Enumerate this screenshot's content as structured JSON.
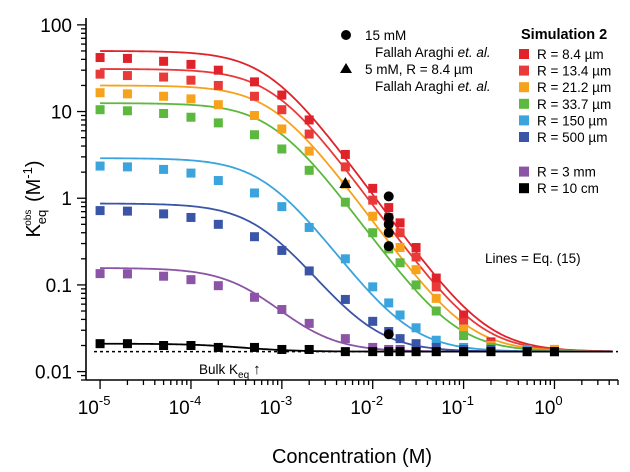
{
  "chart_data": {
    "type": "scatter",
    "xscale": "log",
    "yscale": "log",
    "xlim": [
      7e-06,
      5
    ],
    "ylim": [
      0.008,
      120
    ],
    "xlabel": "Concentration (M)",
    "ylabel": {
      "main": "K",
      "sub": "eq",
      "sup": "obs",
      "unit": " (M",
      "unit_sup": "-1",
      "unit_close": ")"
    },
    "x_ticks": [
      {
        "value": 1e-05,
        "base": "10",
        "exp": "-5"
      },
      {
        "value": 0.0001,
        "base": "10",
        "exp": "-4"
      },
      {
        "value": 0.001,
        "base": "10",
        "exp": "-3"
      },
      {
        "value": 0.01,
        "base": "10",
        "exp": "-2"
      },
      {
        "value": 0.1,
        "base": "10",
        "exp": "-1"
      },
      {
        "value": 1,
        "base": "10",
        "exp": "0"
      }
    ],
    "y_ticks": [
      {
        "value": 100,
        "label": "100"
      },
      {
        "value": 10,
        "label": "10"
      },
      {
        "value": 1,
        "label": "1"
      },
      {
        "value": 0.1,
        "label": "0.1"
      },
      {
        "value": 0.01,
        "label": "0.01"
      }
    ],
    "legend_title": "Simulation 2",
    "legend_position": "top-right",
    "bulk_keq": 0.017,
    "series": [
      {
        "name": "R = 8.4 µm",
        "color": "#e0232a",
        "plateau": 50,
        "x": [
          1e-05,
          2e-05,
          5e-05,
          0.0001,
          0.0002,
          0.0005,
          0.001,
          0.002,
          0.005,
          0.01,
          0.015,
          0.02,
          0.03,
          0.05,
          0.1,
          0.2,
          0.5,
          1
        ],
        "y": [
          42,
          41,
          38,
          35,
          30,
          22,
          15.5,
          8,
          3.2,
          1.3,
          0.78,
          0.52,
          0.27,
          0.12,
          0.045,
          0.022,
          0.018,
          0.018
        ]
      },
      {
        "name": "R = 13.4 µm",
        "color": "#e93a3a",
        "plateau": 31,
        "x": [
          1e-05,
          2e-05,
          5e-05,
          0.0001,
          0.0002,
          0.0005,
          0.001,
          0.002,
          0.005,
          0.01,
          0.015,
          0.02,
          0.03,
          0.05,
          0.1,
          0.2,
          0.5,
          1
        ],
        "y": [
          27,
          26,
          25,
          23,
          20,
          15,
          10.5,
          5.5,
          2.3,
          0.95,
          0.6,
          0.4,
          0.21,
          0.095,
          0.037,
          0.021,
          0.018,
          0.018
        ]
      },
      {
        "name": "R = 21.2 µm",
        "color": "#f7a21d",
        "plateau": 20,
        "x": [
          1e-05,
          2e-05,
          5e-05,
          0.0001,
          0.0002,
          0.0005,
          0.001,
          0.002,
          0.005,
          0.01,
          0.015,
          0.02,
          0.03,
          0.05,
          0.1,
          0.2,
          0.5,
          1
        ],
        "y": [
          16.5,
          16,
          15,
          14,
          12,
          9,
          6.3,
          3.5,
          1.45,
          0.62,
          0.4,
          0.27,
          0.15,
          0.07,
          0.031,
          0.02,
          0.018,
          0.018
        ]
      },
      {
        "name": "R = 33.7 µm",
        "color": "#5cb83e",
        "plateau": 12.5,
        "x": [
          1e-05,
          2e-05,
          5e-05,
          0.0001,
          0.0002,
          0.0005,
          0.001,
          0.002,
          0.005,
          0.01,
          0.015,
          0.02,
          0.03,
          0.05,
          0.1,
          0.2,
          0.5,
          1
        ],
        "y": [
          10.5,
          10.2,
          9.5,
          8.6,
          7.4,
          5.4,
          3.7,
          2.1,
          0.9,
          0.4,
          0.26,
          0.18,
          0.1,
          0.05,
          0.026,
          0.019,
          0.018,
          0.017
        ]
      },
      {
        "name": "R = 150 µm",
        "color": "#3ba4dc",
        "plateau": 2.9,
        "x": [
          1e-05,
          2e-05,
          5e-05,
          0.0001,
          0.0002,
          0.0005,
          0.001,
          0.002,
          0.005,
          0.01,
          0.015,
          0.02,
          0.03,
          0.05,
          0.1,
          0.2,
          0.5,
          1
        ],
        "y": [
          2.35,
          2.3,
          2.15,
          1.95,
          1.6,
          1.15,
          0.8,
          0.46,
          0.2,
          0.095,
          0.062,
          0.045,
          0.032,
          0.023,
          0.019,
          0.018,
          0.018,
          0.017
        ]
      },
      {
        "name": "R = 500 µm",
        "color": "#3a55a7",
        "plateau": 0.87,
        "x": [
          1e-05,
          2e-05,
          5e-05,
          0.0001,
          0.0002,
          0.0005,
          0.001,
          0.002,
          0.005,
          0.01,
          0.015,
          0.02,
          0.03,
          0.05,
          0.1,
          0.2,
          0.5,
          1
        ],
        "y": [
          0.72,
          0.71,
          0.66,
          0.6,
          0.5,
          0.36,
          0.25,
          0.145,
          0.068,
          0.038,
          0.029,
          0.024,
          0.021,
          0.019,
          0.018,
          0.018,
          0.017,
          0.017
        ]
      },
      {
        "name": "R = 3 mm",
        "color": "#8b54a6",
        "plateau": 0.157,
        "x": [
          1e-05,
          2e-05,
          5e-05,
          0.0001,
          0.0002,
          0.0005,
          0.001,
          0.002,
          0.005,
          0.01,
          0.015,
          0.02,
          0.03,
          0.05,
          0.1,
          0.2,
          0.5,
          1
        ],
        "y": [
          0.135,
          0.134,
          0.126,
          0.115,
          0.098,
          0.072,
          0.052,
          0.036,
          0.024,
          0.019,
          0.018,
          0.018,
          0.017,
          0.017,
          0.017,
          0.017,
          0.017,
          0.017
        ]
      },
      {
        "name": "R = 10 cm",
        "color": "#000000",
        "plateau": 0.021,
        "x": [
          1e-05,
          2e-05,
          5e-05,
          0.0001,
          0.0002,
          0.0005,
          0.001,
          0.002,
          0.005,
          0.01,
          0.015,
          0.02,
          0.03,
          0.05,
          0.1,
          0.2,
          0.5,
          1
        ],
        "y": [
          0.021,
          0.021,
          0.02,
          0.02,
          0.019,
          0.019,
          0.018,
          0.018,
          0.017,
          0.017,
          0.017,
          0.017,
          0.017,
          0.017,
          0.017,
          0.017,
          0.017,
          0.017
        ]
      }
    ],
    "experimental": [
      {
        "name": "15 mM",
        "source": "Fallah Araghi",
        "suffix": " et. al.",
        "marker": "circle",
        "color": "#000000",
        "x": [
          0.015,
          0.015,
          0.015,
          0.015,
          0.015,
          0.015
        ],
        "y": [
          1.05,
          0.6,
          0.5,
          0.4,
          0.28,
          0.027
        ]
      },
      {
        "name": "5 mM, R = 8.4 µm",
        "source": "Fallah Araghi",
        "suffix": " et. al.",
        "marker": "triangle",
        "color": "#000000",
        "x": [
          0.005
        ],
        "y": [
          1.5
        ]
      }
    ],
    "annotations": {
      "lines_eq": "Lines = Eq. (15)",
      "bulk": "Bulk K",
      "bulk_sub": "eq",
      "bulk_arrow": "↑"
    }
  }
}
